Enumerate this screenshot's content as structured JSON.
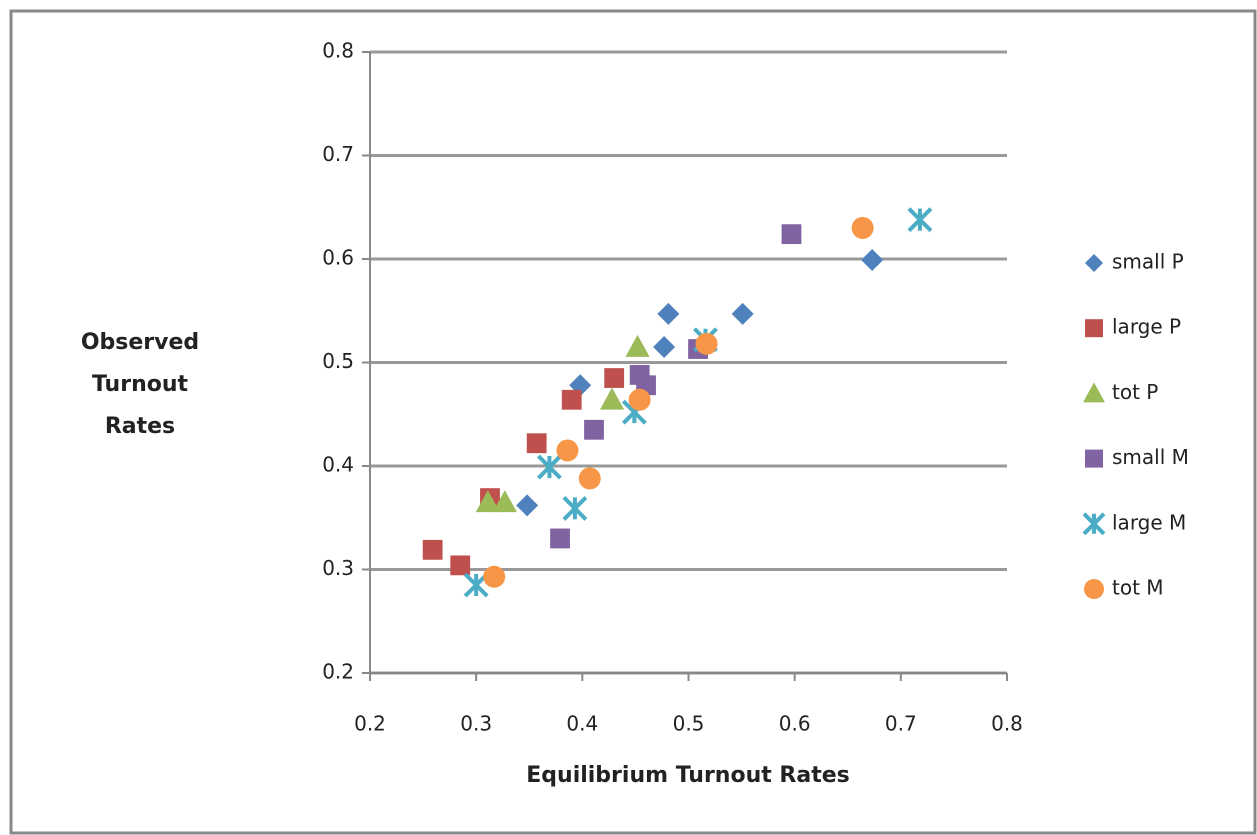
{
  "chart_data": {
    "type": "scatter",
    "xlabel": "Equilibrium Turnout Rates",
    "ylabel": "Observed Turnout Rates",
    "xlim": [
      0.2,
      0.8
    ],
    "ylim": [
      0.2,
      0.8
    ],
    "xticks": [
      0.2,
      0.3,
      0.4,
      0.5,
      0.6,
      0.7,
      0.8
    ],
    "yticks": [
      0.2,
      0.3,
      0.4,
      0.5,
      0.6,
      0.7,
      0.8
    ],
    "grid": true,
    "legend": "right",
    "series": [
      {
        "name": "small P",
        "color": "#4f81bd",
        "marker": "diamond",
        "x": [
          0.348,
          0.398,
          0.477,
          0.481,
          0.551,
          0.673
        ],
        "values": [
          0.362,
          0.478,
          0.515,
          0.547,
          0.547,
          0.599
        ]
      },
      {
        "name": "large P",
        "color": "#c0504d",
        "marker": "square",
        "x": [
          0.259,
          0.285,
          0.313,
          0.357,
          0.39,
          0.43
        ],
        "values": [
          0.319,
          0.304,
          0.369,
          0.422,
          0.464,
          0.485
        ]
      },
      {
        "name": "tot P",
        "color": "#9bbb59",
        "marker": "triangle",
        "x": [
          0.311,
          0.327,
          0.428,
          0.452
        ],
        "values": [
          0.365,
          0.365,
          0.464,
          0.515
        ]
      },
      {
        "name": "small M",
        "color": "#8064a2",
        "marker": "square",
        "x": [
          0.379,
          0.411,
          0.46,
          0.454,
          0.509,
          0.597
        ],
        "values": [
          0.33,
          0.435,
          0.478,
          0.488,
          0.513,
          0.624
        ]
      },
      {
        "name": "large M",
        "color": "#4bacc6",
        "marker": "x",
        "x": [
          0.3,
          0.369,
          0.393,
          0.449,
          0.516,
          0.718
        ],
        "values": [
          0.285,
          0.399,
          0.359,
          0.452,
          0.522,
          0.638
        ]
      },
      {
        "name": "tot M",
        "color": "#f79646",
        "marker": "circle",
        "x": [
          0.317,
          0.386,
          0.407,
          0.454,
          0.517,
          0.664
        ],
        "values": [
          0.293,
          0.415,
          0.388,
          0.464,
          0.518,
          0.63
        ]
      }
    ]
  }
}
